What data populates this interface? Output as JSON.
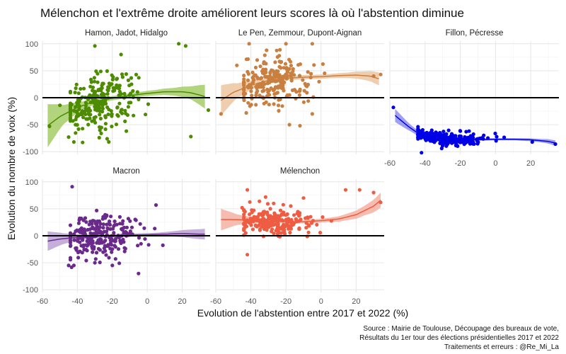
{
  "chart_data": {
    "type": "scatter",
    "title": "Mélenchon et l'extrême droite améliorent leurs scores là où l'abstention diminue",
    "xlabel": "Evolution de l'abstention entre 2017 et 2022 (%)",
    "ylabel": "Evolution du  nombre de voix (%)",
    "xlim": [
      -60,
      36
    ],
    "ylim": [
      -105,
      105
    ],
    "x_ticks": [
      -60,
      -40,
      -20,
      0,
      20
    ],
    "y_ticks": [
      -100,
      -50,
      0,
      50,
      100
    ],
    "grid": true,
    "reference_line_y": 0,
    "caption": [
      "Source : Mairie de Toulouse, Découpage des bureaux de vote,",
      "Résultats du 1er tour des élections présidentielles 2017 et 2022",
      "Traitements et erreurs : @Re_Mi_La"
    ],
    "panels": [
      {
        "name": "Hamon, Jadot, Hidalgo",
        "color": "#4d8c00",
        "fill": "#a3cc66",
        "show_x_ticks": false,
        "show_y_ticks": true,
        "spread": 24,
        "trend": [
          [
            -57,
            -52
          ],
          [
            -50,
            -35
          ],
          [
            -40,
            -18
          ],
          [
            -30,
            -7
          ],
          [
            -20,
            -1
          ],
          [
            -10,
            4
          ],
          [
            0,
            8
          ],
          [
            10,
            11
          ],
          [
            20,
            11
          ],
          [
            25,
            9
          ],
          [
            30,
            5
          ],
          [
            33,
            2
          ]
        ],
        "band_halfwidth": [
          [
            -57,
            40
          ],
          [
            -48,
            18
          ],
          [
            -38,
            8
          ],
          [
            -25,
            4
          ],
          [
            -10,
            4
          ],
          [
            5,
            5
          ],
          [
            15,
            7
          ],
          [
            25,
            12
          ],
          [
            33,
            22
          ]
        ],
        "outliers": [
          [
            -30,
            96
          ],
          [
            -15,
            80
          ],
          [
            18,
            100
          ],
          [
            22,
            96
          ],
          [
            -42,
            -82
          ],
          [
            -37,
            -83
          ],
          [
            -22,
            -82
          ],
          [
            -56,
            -53
          ],
          [
            -45,
            -73
          ],
          [
            35,
            -23
          ],
          [
            25,
            -72
          ],
          [
            -50,
            -14
          ]
        ]
      },
      {
        "name": "Le Pen, Zemmour, Dupont-Aignan",
        "color": "#c97f3f",
        "fill": "#ebc6a1",
        "show_x_ticks": false,
        "show_y_ticks": false,
        "spread": 22,
        "trend": [
          [
            -57,
            -5
          ],
          [
            -50,
            10
          ],
          [
            -40,
            23
          ],
          [
            -30,
            32
          ],
          [
            -20,
            36
          ],
          [
            -10,
            38
          ],
          [
            0,
            39
          ],
          [
            10,
            41
          ],
          [
            20,
            42
          ],
          [
            28,
            40
          ],
          [
            33,
            35
          ]
        ],
        "band_halfwidth": [
          [
            -57,
            28
          ],
          [
            -48,
            14
          ],
          [
            -38,
            7
          ],
          [
            -25,
            4
          ],
          [
            -10,
            4
          ],
          [
            5,
            4
          ],
          [
            15,
            5
          ],
          [
            25,
            8
          ],
          [
            33,
            12
          ]
        ],
        "outliers": [
          [
            -57,
            -30
          ],
          [
            -41,
            100
          ],
          [
            -20,
            100
          ],
          [
            -5,
            100
          ],
          [
            -18,
            -50
          ],
          [
            -12,
            -52
          ],
          [
            30,
            40
          ],
          [
            34,
            43
          ],
          [
            -48,
            60
          ],
          [
            -5,
            -30
          ]
        ]
      },
      {
        "name": "Fillon, Pécresse",
        "color": "#0000e6",
        "fill": "#8f8fef",
        "show_x_ticks": true,
        "show_y_ticks": false,
        "spread": 6,
        "trend": [
          [
            -57,
            -33
          ],
          [
            -50,
            -52
          ],
          [
            -44,
            -66
          ],
          [
            -38,
            -73
          ],
          [
            -30,
            -76
          ],
          [
            -20,
            -77
          ],
          [
            -10,
            -78
          ],
          [
            0,
            -77
          ],
          [
            10,
            -77
          ],
          [
            20,
            -78
          ],
          [
            30,
            -81
          ],
          [
            34,
            -84
          ]
        ],
        "band_halfwidth": [
          [
            -57,
            12
          ],
          [
            -48,
            6
          ],
          [
            -38,
            3
          ],
          [
            -25,
            2
          ],
          [
            -10,
            2
          ],
          [
            10,
            2
          ],
          [
            25,
            3
          ],
          [
            34,
            5
          ]
        ],
        "outliers": [
          [
            -58,
            -18
          ],
          [
            -42,
            -102
          ],
          [
            -20,
            -62
          ],
          [
            -15,
            -62
          ],
          [
            34,
            -86
          ]
        ]
      },
      {
        "name": "Macron",
        "color": "#6a2a8c",
        "fill": "#bba0d4",
        "show_x_ticks": true,
        "show_y_ticks": true,
        "spread": 20,
        "trend": [
          [
            -57,
            -10
          ],
          [
            -50,
            -6
          ],
          [
            -40,
            -3
          ],
          [
            -30,
            -1
          ],
          [
            -20,
            0
          ],
          [
            -10,
            1
          ],
          [
            0,
            2
          ],
          [
            10,
            3
          ],
          [
            20,
            4
          ],
          [
            30,
            3
          ],
          [
            33,
            3
          ]
        ],
        "band_halfwidth": [
          [
            -57,
            18
          ],
          [
            -48,
            10
          ],
          [
            -38,
            5
          ],
          [
            -25,
            3
          ],
          [
            -10,
            3
          ],
          [
            5,
            3
          ],
          [
            15,
            5
          ],
          [
            25,
            8
          ],
          [
            33,
            10
          ]
        ],
        "outliers": [
          [
            -43,
            91
          ],
          [
            -45,
            -55
          ],
          [
            -42,
            -55
          ],
          [
            -30,
            -50
          ],
          [
            -20,
            -55
          ],
          [
            -5,
            -70
          ],
          [
            5,
            57
          ]
        ]
      },
      {
        "name": "Mélenchon",
        "color": "#ee5c42",
        "fill": "#f6b0a2",
        "show_x_ticks": true,
        "show_y_ticks": false,
        "spread": 13,
        "trend": [
          [
            -57,
            30
          ],
          [
            -50,
            30
          ],
          [
            -40,
            29
          ],
          [
            -30,
            27
          ],
          [
            -20,
            26
          ],
          [
            -10,
            26
          ],
          [
            0,
            28
          ],
          [
            10,
            31
          ],
          [
            20,
            39
          ],
          [
            30,
            55
          ],
          [
            34,
            66
          ]
        ],
        "band_halfwidth": [
          [
            -57,
            20
          ],
          [
            -48,
            10
          ],
          [
            -38,
            5
          ],
          [
            -25,
            3
          ],
          [
            -10,
            3
          ],
          [
            5,
            4
          ],
          [
            15,
            6
          ],
          [
            25,
            9
          ],
          [
            34,
            14
          ]
        ],
        "outliers": [
          [
            -42,
            -35
          ],
          [
            -42,
            85
          ],
          [
            -27,
            60
          ],
          [
            -10,
            70
          ],
          [
            -45,
            52
          ],
          [
            14,
            85
          ],
          [
            22,
            85
          ],
          [
            30,
            80
          ],
          [
            34,
            62
          ]
        ]
      }
    ]
  }
}
